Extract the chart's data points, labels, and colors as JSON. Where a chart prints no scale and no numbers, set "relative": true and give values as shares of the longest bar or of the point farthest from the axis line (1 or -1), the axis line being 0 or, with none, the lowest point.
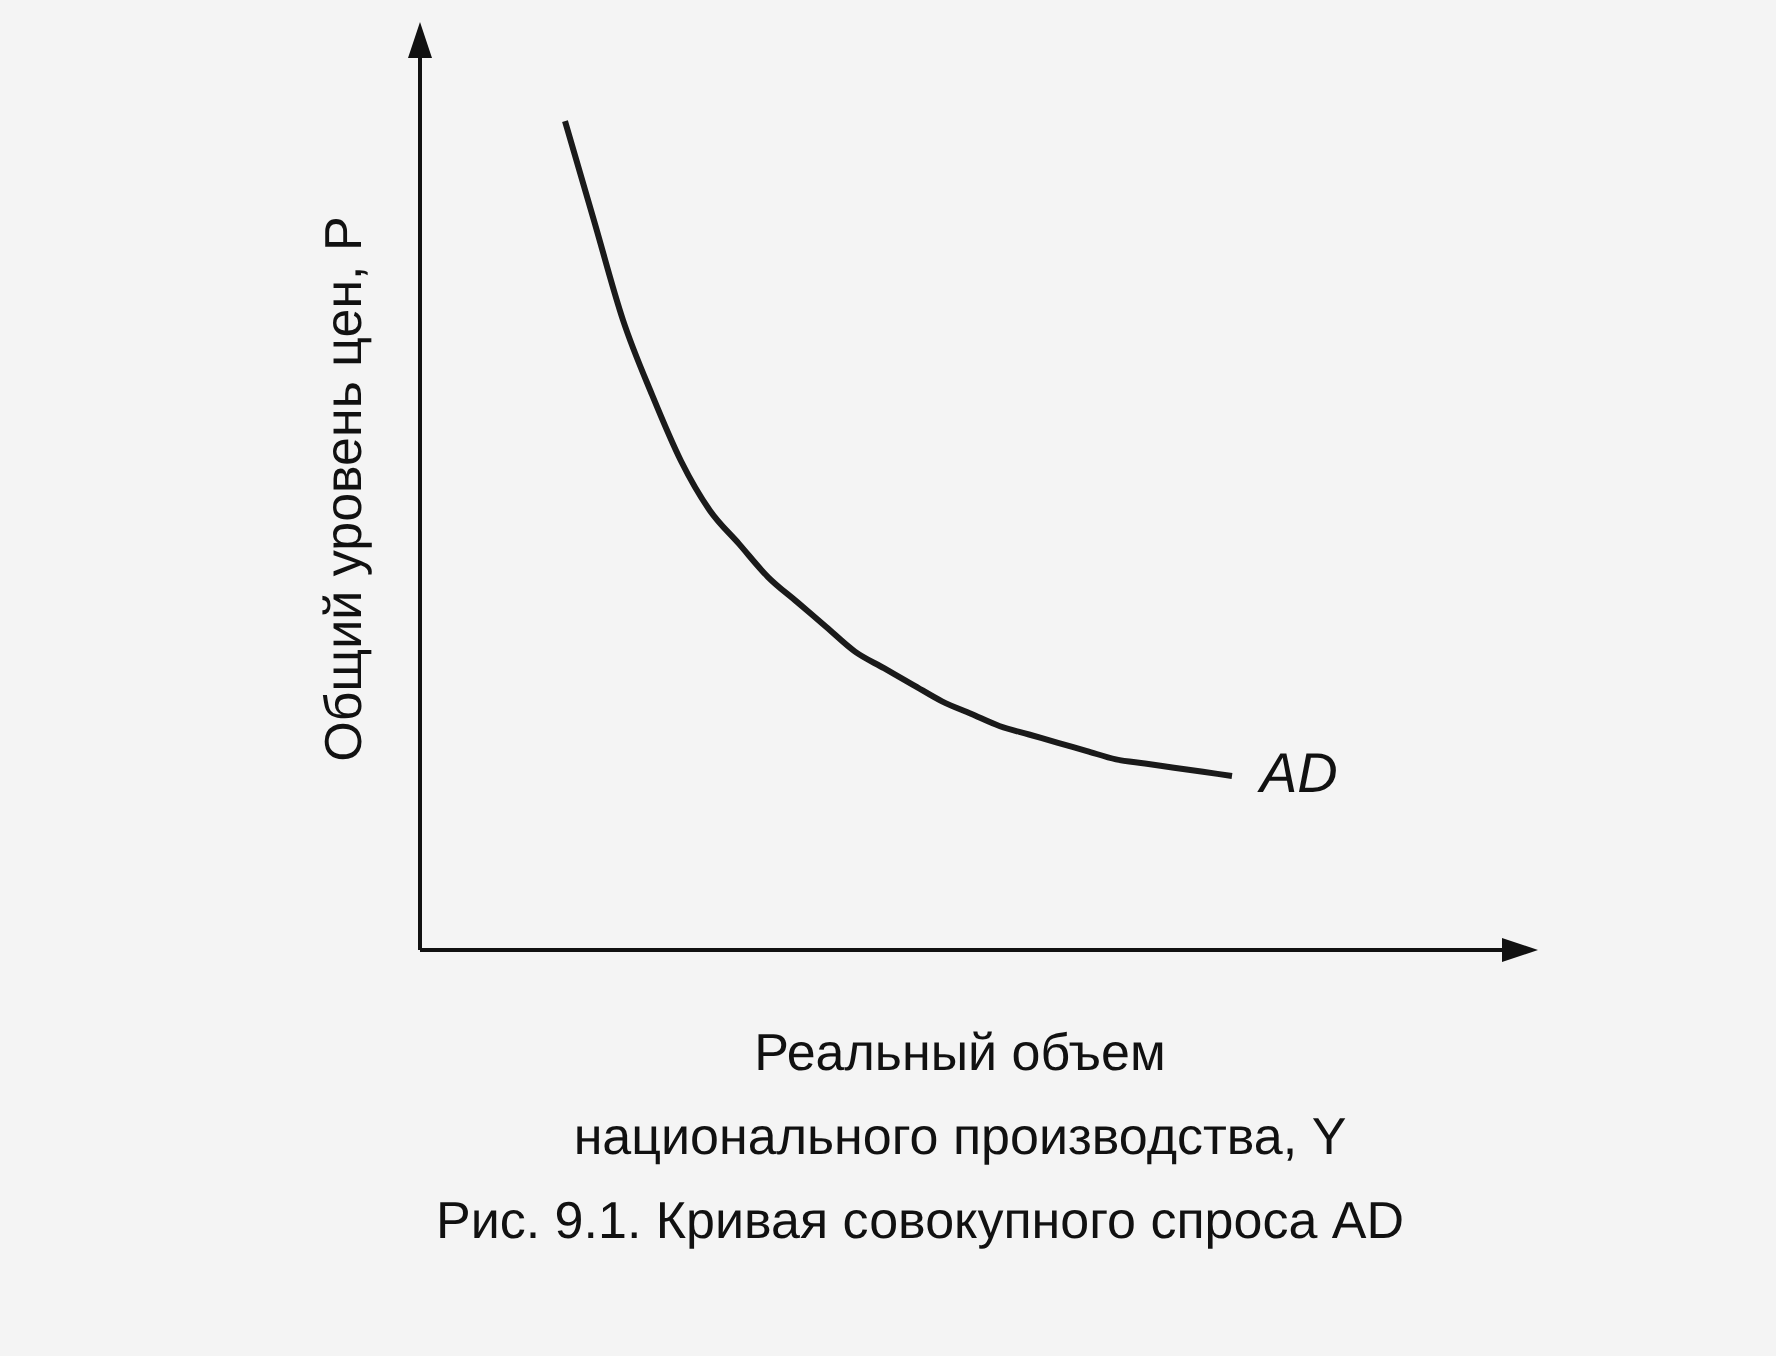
{
  "chart_data": {
    "type": "line",
    "relative": true,
    "ylabel": "Общий уровень цен, P",
    "xlabel": "Реальный объем\nнационального производства, Y",
    "annotations": [
      "Рис. 9.1. Кривая совокупного спроса AD"
    ],
    "categories": [
      null,
      null,
      null,
      null,
      null,
      null,
      null,
      null,
      null,
      null,
      null,
      null,
      null,
      null,
      null,
      null,
      null,
      null,
      null,
      null,
      null,
      null,
      null,
      null,
      null,
      null,
      null,
      null,
      null,
      null,
      null,
      null,
      null,
      null,
      null,
      null,
      null,
      null
    ],
    "series": [
      {
        "name": "AD",
        "color": "#1a1a1a",
        "values": [
          null,
          null,
          null,
          null,
          null,
          1.0,
          0.88,
          0.76,
          0.67,
          0.59,
          0.53,
          0.49,
          0.45,
          0.42,
          0.39,
          0.36,
          0.34,
          0.32,
          0.3,
          0.285,
          0.27,
          0.26,
          0.25,
          0.24,
          0.23,
          0.225,
          0.22,
          0.215,
          0.21,
          null,
          null,
          null,
          null,
          null,
          null,
          null,
          null,
          null
        ]
      }
    ],
    "grid": false,
    "legend": false,
    "marker": "none",
    "line_style": "solid"
  }
}
